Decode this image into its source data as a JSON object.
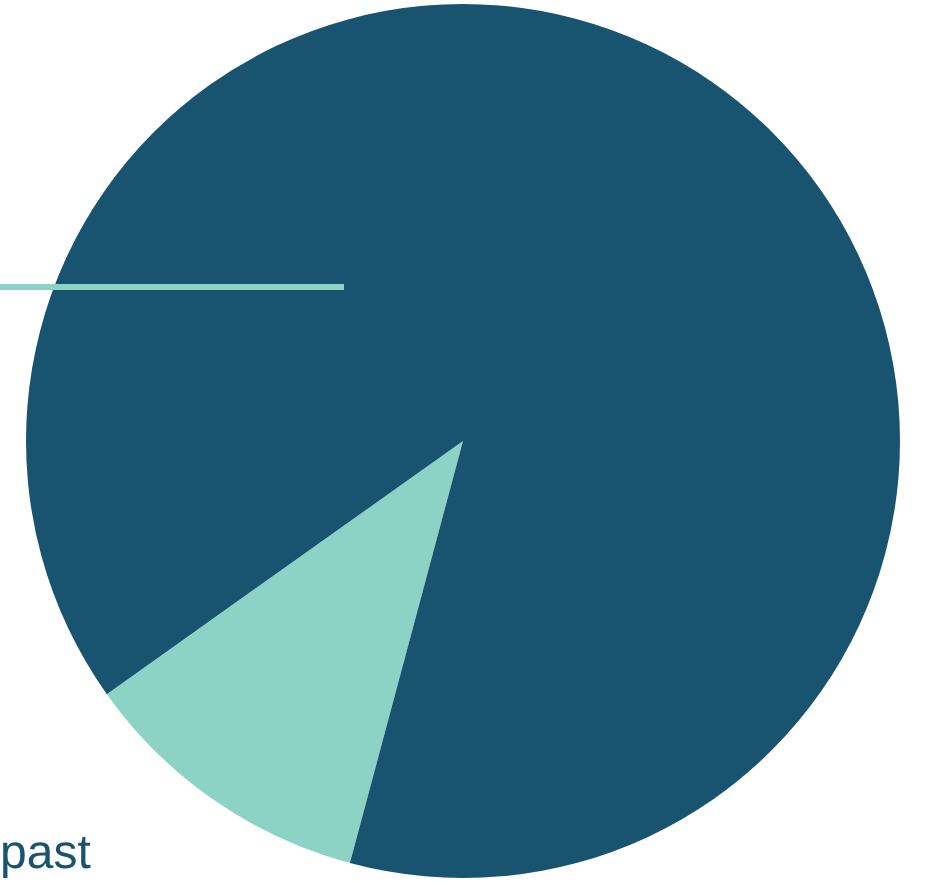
{
  "chart_data": {
    "type": "pie",
    "categories": [
      null,
      null
    ],
    "values": [
      11,
      89
    ],
    "colors": [
      "#8cd3c6",
      "#185470"
    ],
    "legend": false,
    "annotations": [
      "past"
    ]
  }
}
